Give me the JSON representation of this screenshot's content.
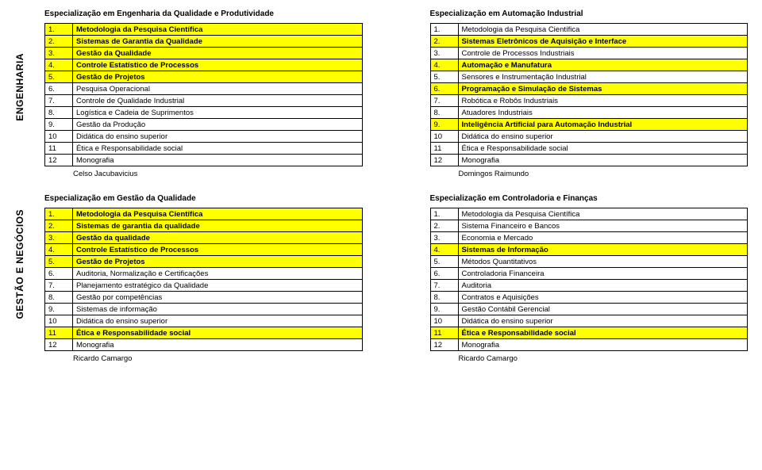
{
  "side_labels": [
    "ENGENHARIA",
    "GESTÃO E NEGÓCIOS"
  ],
  "colors": {
    "highlight": "#ffff00",
    "border": "#000000",
    "bg": "#ffffff"
  },
  "typography": {
    "font_family": "Verdana, Arial, sans-serif",
    "base_size_pt": 7.5,
    "title_size_pt": 8
  },
  "blocks": [
    {
      "title": "Especialização em Engenharia da Qualidade e Produtividade",
      "coord_label": "",
      "coordinator": "Celso Jacubavicius",
      "rows": [
        {
          "n": "1.",
          "t": "Metodologia da Pesquisa Científica",
          "hl": true
        },
        {
          "n": "2.",
          "t": "Sistemas de Garantia da Qualidade",
          "hl": true
        },
        {
          "n": "3.",
          "t": "Gestão da Qualidade",
          "hl": true
        },
        {
          "n": "4.",
          "t": "Controle Estatístico de Processos",
          "hl": true
        },
        {
          "n": "5.",
          "t": "Gestão de Projetos",
          "hl": true
        },
        {
          "n": "6.",
          "t": "Pesquisa Operacional",
          "hl": false
        },
        {
          "n": "7.",
          "t": "Controle de Qualidade Industrial",
          "hl": false
        },
        {
          "n": "8.",
          "t": "Logística e Cadeia de Suprimentos",
          "hl": false
        },
        {
          "n": "9.",
          "t": "Gestão da Produção",
          "hl": false
        },
        {
          "n": "10",
          "t": "Didática do ensino superior",
          "hl": false
        },
        {
          "n": "11",
          "t": "Ética e Responsabilidade social",
          "hl": false
        },
        {
          "n": "12",
          "t": "Monografia",
          "hl": false
        }
      ]
    },
    {
      "title": "Especialização em Automação Industrial",
      "coord_label": "",
      "coordinator": "Domingos Raimundo",
      "rows": [
        {
          "n": "1.",
          "t": "Metodologia da Pesquisa Científica",
          "hl": false
        },
        {
          "n": "2.",
          "t": "Sistemas Eletrônicos de Aquisição e Interface",
          "hl": true
        },
        {
          "n": "3.",
          "t": "Controle de Processos Industriais",
          "hl": false
        },
        {
          "n": "4.",
          "t": "Automação e Manufatura",
          "hl": true
        },
        {
          "n": "5.",
          "t": "Sensores e Instrumentação Industrial",
          "hl": false
        },
        {
          "n": "6.",
          "t": "Programação e Simulação de Sistemas",
          "hl": true
        },
        {
          "n": "7.",
          "t": "Robótica e Robôs Industriais",
          "hl": false
        },
        {
          "n": "8.",
          "t": "Atuadores Industriais",
          "hl": false
        },
        {
          "n": "9.",
          "t": "Inteligência Artificial para Automação Industrial",
          "hl": true
        },
        {
          "n": "10",
          "t": "Didática do ensino superior",
          "hl": false
        },
        {
          "n": "11",
          "t": "Ética e Responsabilidade social",
          "hl": false
        },
        {
          "n": "12",
          "t": "Monografia",
          "hl": false
        }
      ]
    },
    {
      "title": "Especialização em Gestão da Qualidade",
      "coord_label": "",
      "coordinator": "Ricardo Camargo",
      "rows": [
        {
          "n": "1.",
          "t": "Metodologia da Pesquisa Científica",
          "hl": true
        },
        {
          "n": "2.",
          "t": "Sistemas de garantia da qualidade",
          "hl": true
        },
        {
          "n": "3.",
          "t": "Gestão da qualidade",
          "hl": true
        },
        {
          "n": "4.",
          "t": "Controle Estatístico de Processos",
          "hl": true
        },
        {
          "n": "5.",
          "t": "Gestão de Projetos",
          "hl": true
        },
        {
          "n": "6.",
          "t": "Auditoria, Normalização e Certificações",
          "hl": false
        },
        {
          "n": "7.",
          "t": "Planejamento estratégico da Qualidade",
          "hl": false
        },
        {
          "n": "8.",
          "t": "Gestão por competências",
          "hl": false
        },
        {
          "n": "9.",
          "t": "Sistemas de informação",
          "hl": false
        },
        {
          "n": "10",
          "t": "Didática do ensino superior",
          "hl": false
        },
        {
          "n": "11",
          "t": "Ética e Responsabilidade social",
          "hl": true
        },
        {
          "n": "12",
          "t": "Monografia",
          "hl": false
        }
      ]
    },
    {
      "title": "Especialização em Controladoria e Finanças",
      "coord_label": "",
      "coordinator": "Ricardo Camargo",
      "rows": [
        {
          "n": "1.",
          "t": "Metodologia da Pesquisa Científica",
          "hl": false
        },
        {
          "n": "2.",
          "t": "Sistema Financeiro e Bancos",
          "hl": false
        },
        {
          "n": "3.",
          "t": "Economia e Mercado",
          "hl": false
        },
        {
          "n": "4.",
          "t": "Sistemas de Informação",
          "hl": true
        },
        {
          "n": "5.",
          "t": "Métodos Quantitativos",
          "hl": false
        },
        {
          "n": "6.",
          "t": "Controladoria Financeira",
          "hl": false
        },
        {
          "n": "7.",
          "t": "Auditoria",
          "hl": false
        },
        {
          "n": "8.",
          "t": "Contratos e Aquisições",
          "hl": false
        },
        {
          "n": "9.",
          "t": "Gestão Contábil Gerencial",
          "hl": false
        },
        {
          "n": "10",
          "t": "Didática do ensino superior",
          "hl": false
        },
        {
          "n": "11",
          "t": "Ética e Responsabilidade social",
          "hl": true
        },
        {
          "n": "12",
          "t": "Monografia",
          "hl": false
        }
      ]
    }
  ]
}
